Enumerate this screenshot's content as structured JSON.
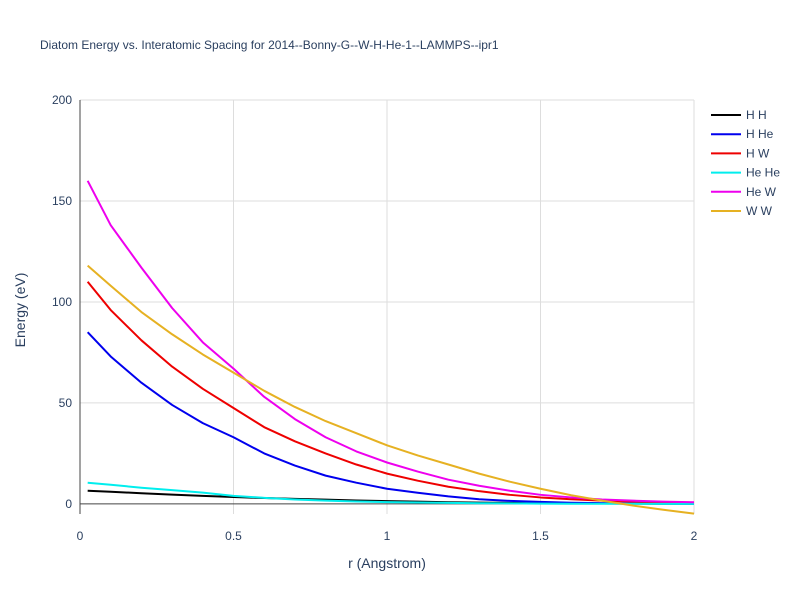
{
  "chart_data": {
    "type": "line",
    "title": "Diatom Energy vs. Interatomic Spacing for 2014--Bonny-G--W-H-He-1--LAMMPS--ipr1",
    "xlabel": "r (Angstrom)",
    "ylabel": "Energy (eV)",
    "xlim": [
      0,
      2
    ],
    "ylim": [
      -5,
      200
    ],
    "xticks": [
      0,
      0.5,
      1,
      1.5,
      2
    ],
    "xtick_labels": [
      "0",
      "0.5",
      "1",
      "1.5",
      "2"
    ],
    "yticks": [
      0,
      50,
      100,
      150,
      200
    ],
    "ytick_labels": [
      "0",
      "50",
      "100",
      "150",
      "200"
    ],
    "grid": true,
    "legend_position": "top-right",
    "x": [
      0.025,
      0.1,
      0.2,
      0.3,
      0.4,
      0.5,
      0.6,
      0.7,
      0.8,
      0.9,
      1.0,
      1.1,
      1.2,
      1.3,
      1.4,
      1.5,
      1.6,
      1.7,
      1.8,
      1.9,
      2.0
    ],
    "series": [
      {
        "name": "H H",
        "color": "#000000",
        "values": [
          6.5,
          6.0,
          5.3,
          4.6,
          4.0,
          3.4,
          2.9,
          2.5,
          2.1,
          1.7,
          1.4,
          1.1,
          0.85,
          0.65,
          0.5,
          0.35,
          0.25,
          0.18,
          0.12,
          0.08,
          0.05
        ]
      },
      {
        "name": "H He",
        "color": "#0000ee",
        "values": [
          85,
          73,
          60,
          49,
          40,
          33,
          25,
          19,
          14,
          10.5,
          7.5,
          5.5,
          3.7,
          2.3,
          1.5,
          1.0,
          0.6,
          0.4,
          0.25,
          0.15,
          0.1
        ]
      },
      {
        "name": "H W",
        "color": "#ee0000",
        "values": [
          110,
          96,
          81,
          68,
          57,
          47.5,
          38,
          31,
          25,
          19.5,
          15,
          11.5,
          8.5,
          6.3,
          4.5,
          3.2,
          2.3,
          1.6,
          1.1,
          0.8,
          0.5
        ]
      },
      {
        "name": "He He",
        "color": "#00eeee",
        "values": [
          10.5,
          9.5,
          8.0,
          6.8,
          5.6,
          4.0,
          3.0,
          2.2,
          1.6,
          1.2,
          0.9,
          0.7,
          0.5,
          0.35,
          0.25,
          0.15,
          0.1,
          0.07,
          0.05,
          0.03,
          0.02
        ]
      },
      {
        "name": "He W",
        "color": "#ee00ee",
        "values": [
          160,
          138,
          117,
          97,
          80,
          67,
          53,
          42,
          33,
          26,
          20.5,
          16,
          12,
          9,
          6.5,
          4.5,
          3.2,
          2.2,
          1.6,
          1.1,
          0.8
        ]
      },
      {
        "name": "W W",
        "color": "#e6b122",
        "values": [
          118,
          108,
          95,
          84,
          74,
          65,
          56,
          48,
          41,
          35,
          29,
          24,
          19.5,
          15,
          11,
          7.5,
          4.3,
          1.6,
          -0.8,
          -2.9,
          -4.8
        ]
      }
    ]
  }
}
